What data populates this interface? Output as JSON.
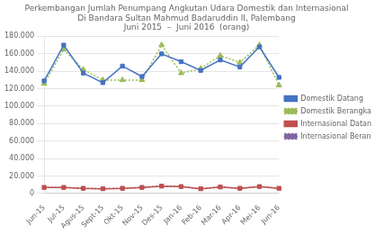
{
  "chart_data": {
    "type": "line",
    "title": [
      "Perkembangan Jumlah Penumpang Angkutan Udara Domestik dan Internasional",
      "Di Bandara Sultan Mahmud Badaruddin II, Palembang",
      "Juni 2015  –  Juni 2016  (orang)"
    ],
    "categories": [
      "Jun-15",
      "Jul-15",
      "Agus-15",
      "Sept-15",
      "Okt-15",
      "Nov-15",
      "Des-15",
      "Jan-16",
      "Feb-16",
      "Mar-16",
      "Apr-16",
      "Mei-16",
      "Jun-16"
    ],
    "series": [
      {
        "name": "Domestik Datang",
        "color": "#4472C4",
        "marker": "square",
        "line_style": "solid",
        "values": [
          129000,
          170000,
          138000,
          127000,
          146000,
          134000,
          160000,
          151000,
          141000,
          153000,
          145000,
          168000,
          133000
        ]
      },
      {
        "name": "Domestik Berangkat",
        "color": "#9BBB59",
        "marker": "triangle",
        "line_style": "dotted",
        "values": [
          126000,
          165000,
          142000,
          130000,
          130000,
          130000,
          170000,
          138000,
          143000,
          158000,
          150000,
          170000,
          124000
        ]
      },
      {
        "name": "Internasional Datang",
        "color": "#C0504D",
        "marker": "square",
        "line_style": "solid",
        "values": [
          7000,
          7000,
          6000,
          5500,
          6000,
          7000,
          8500,
          8000,
          5500,
          7500,
          6000,
          8000,
          6000
        ]
      },
      {
        "name": "Internasional Berangkat",
        "color": "#8064A2",
        "marker": "x",
        "line_style": "dotted",
        "values": [
          7000,
          7000,
          6000,
          5500,
          6000,
          7000,
          8500,
          8000,
          5500,
          7500,
          6000,
          8000,
          6000
        ]
      }
    ],
    "ylim": [
      0,
      180000
    ],
    "yticks": [
      0,
      {
        "value": 20000,
        "label": "20.000"
      },
      {
        "value": 40000,
        "label": "40.000"
      },
      {
        "value": 60000,
        "label": "60.000"
      },
      {
        "value": 80000,
        "label": "80.000"
      },
      {
        "value": 100000,
        "label": "100.000"
      },
      {
        "value": 120000,
        "label": "120.000"
      },
      {
        "value": 140000,
        "label": "140.000"
      },
      {
        "value": 160000,
        "label": "160.000"
      },
      {
        "value": 180000,
        "label": "180.000"
      }
    ],
    "grid": "y",
    "legend": "right"
  }
}
